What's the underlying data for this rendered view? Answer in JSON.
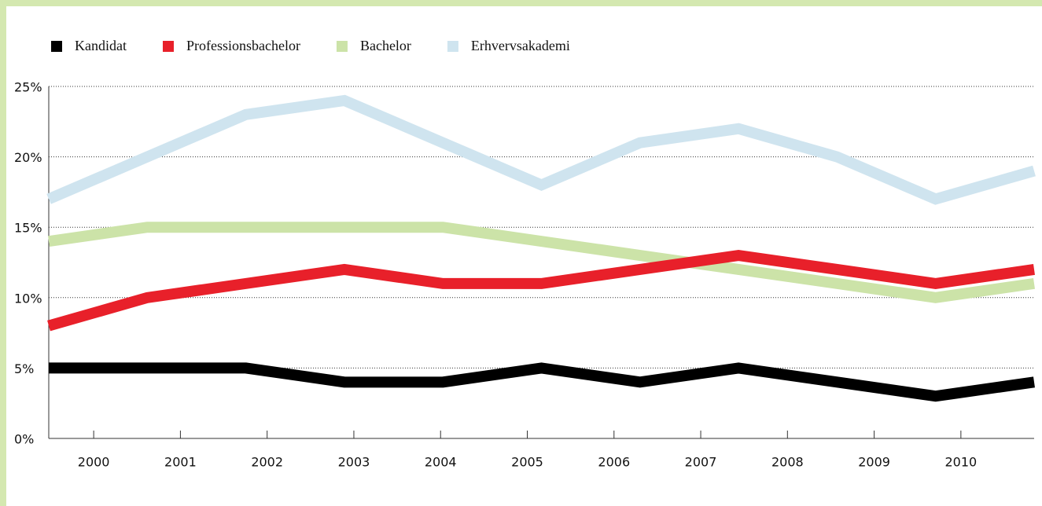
{
  "chart_data": {
    "type": "line",
    "categories": [
      "2000",
      "2001",
      "2002",
      "2003",
      "2004",
      "2005",
      "2006",
      "2007",
      "2008",
      "2009",
      "2010"
    ],
    "series": [
      {
        "name": "Kandidat",
        "color": "#000000",
        "values": [
          5,
          5,
          5,
          4,
          4,
          5,
          4,
          5,
          4,
          3,
          4
        ]
      },
      {
        "name": "Professionsbachelor",
        "color": "#e8202a",
        "values": [
          8,
          10,
          11,
          12,
          11,
          11,
          12,
          13,
          12,
          11,
          12
        ]
      },
      {
        "name": "Bachelor",
        "color": "#cce3a8",
        "values": [
          14,
          15,
          15,
          15,
          15,
          14,
          13,
          12,
          11,
          10,
          11
        ]
      },
      {
        "name": "Erhvervsakademi",
        "color": "#cfe4ef",
        "values": [
          17,
          20,
          23,
          24,
          21,
          18,
          21,
          22,
          20,
          17,
          19
        ]
      }
    ],
    "ylim": [
      0,
      25
    ],
    "yticks": [
      {
        "value": 0,
        "label": "0%"
      },
      {
        "value": 5,
        "label": "5%"
      },
      {
        "value": 10,
        "label": "10%"
      },
      {
        "value": 15,
        "label": "15%"
      },
      {
        "value": 20,
        "label": "20%"
      },
      {
        "value": 25,
        "label": "25%"
      }
    ],
    "grid": true,
    "legend": "top"
  }
}
